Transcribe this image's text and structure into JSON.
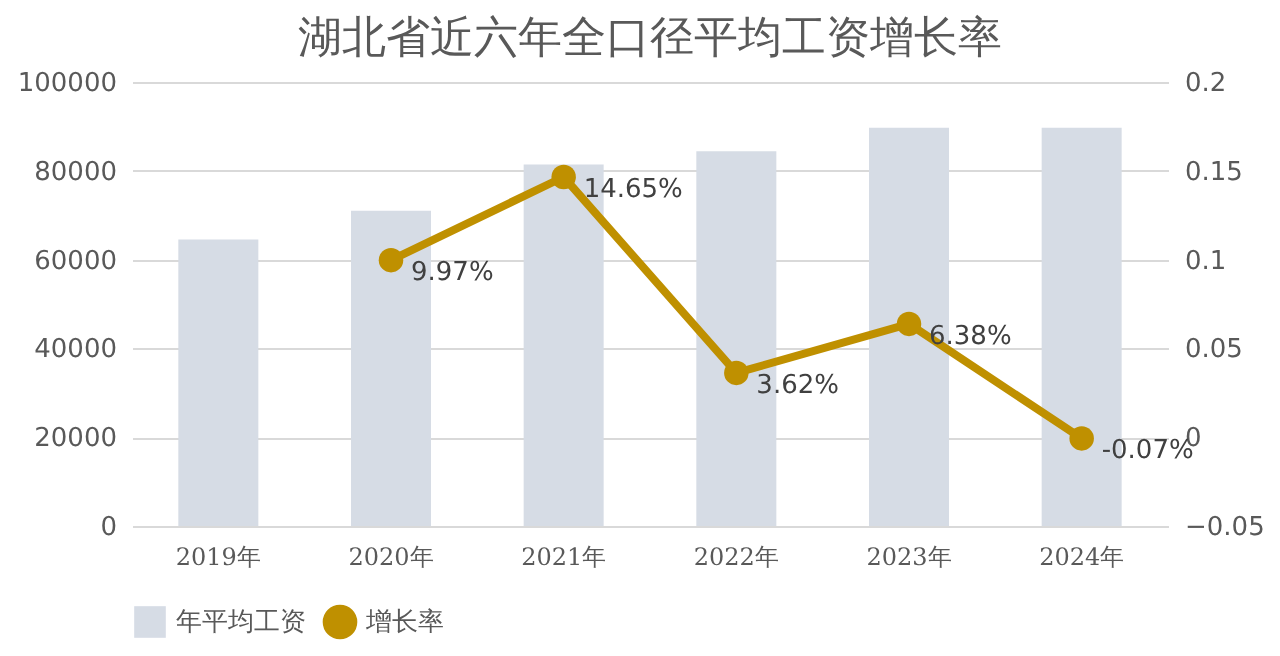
{
  "chart_data": {
    "type": "bar",
    "title": "湖北省近六年全口径平均工资增长率",
    "categories": [
      "2019年",
      "2020年",
      "2021年",
      "2022年",
      "2023年",
      "2024年"
    ],
    "series": [
      {
        "name": "年平均工资",
        "color": "#d6dce5",
        "values": [
          64500,
          71000,
          81400,
          84400,
          89700,
          89700
        ]
      },
      {
        "name": "增长率",
        "type": "line",
        "axis": "y2",
        "color": "#bf9000",
        "marker": "circle",
        "values": [
          null,
          0.0997,
          0.1465,
          0.0362,
          0.0638,
          -0.0007
        ],
        "value_labels": [
          null,
          "9.97%",
          "14.65%",
          "3.62%",
          "6.38%",
          "-0.07%"
        ]
      }
    ],
    "ylim": [
      0,
      100000
    ],
    "yticks": [
      0,
      20000,
      40000,
      60000,
      80000,
      100000
    ],
    "y2lim": [
      -0.05,
      0.2
    ],
    "y2ticks": [
      -0.05,
      0,
      0.05,
      0.1,
      0.15,
      0.2
    ],
    "grid": "y",
    "legend": "bottom"
  }
}
